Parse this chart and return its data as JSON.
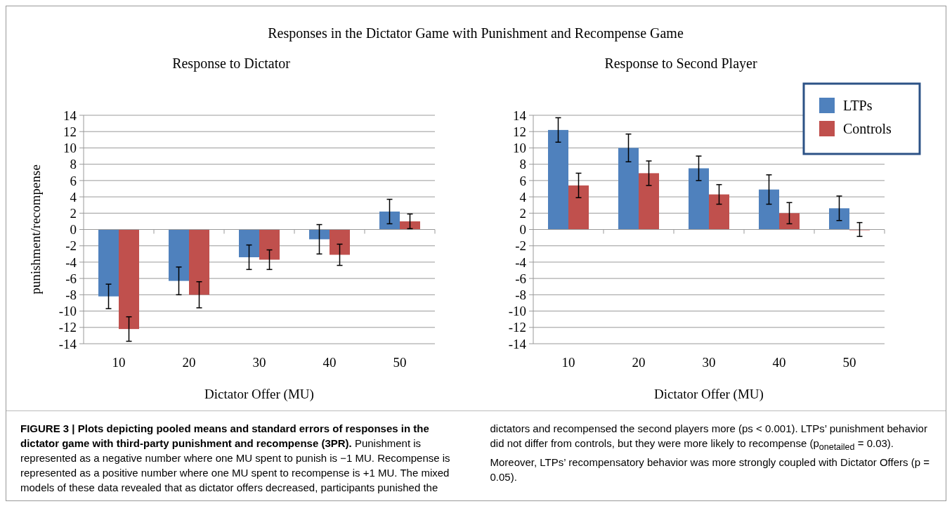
{
  "chart_data": [
    {
      "type": "bar",
      "title": "Response to Dictator",
      "xlabel": "Dictator Offer (MU)",
      "ylabel": "punishment/recompense",
      "categories": [
        "10",
        "20",
        "30",
        "40",
        "50"
      ],
      "ylim": [
        -14,
        14
      ],
      "yticks": [
        -14,
        -12,
        -10,
        -8,
        -6,
        -4,
        -2,
        0,
        2,
        4,
        6,
        8,
        10,
        12,
        14
      ],
      "grid": "y",
      "legend": false,
      "annotations": [
        "Responses in the Dictator Game with Punishment and Recompense Game"
      ],
      "series": [
        {
          "color": "#4f81bd",
          "values": [
            -8.2,
            -6.3,
            -3.4,
            -1.2,
            2.2
          ],
          "errors": [
            1.5,
            1.7,
            1.5,
            1.8,
            1.5
          ]
        },
        {
          "color": "#c0504d",
          "values": [
            -12.2,
            -8.0,
            -3.7,
            -3.1,
            1.0
          ],
          "errors": [
            1.5,
            1.6,
            1.2,
            1.3,
            0.9
          ]
        }
      ]
    },
    {
      "type": "bar",
      "title": "Response to Second Player",
      "xlabel": "Dictator Offer (MU)",
      "categories": [
        "10",
        "20",
        "30",
        "40",
        "50"
      ],
      "ylim": [
        -14,
        14
      ],
      "yticks": [
        -14,
        -12,
        -10,
        -8,
        -6,
        -4,
        -2,
        0,
        2,
        4,
        6,
        8,
        10,
        12,
        14
      ],
      "grid": "y",
      "legend": "top right",
      "annotations": [
        "FIGURE 3 | Plots depicting pooled means and standard errors of responses in the dictator game with third-party punishment and recompense (3PR).",
        "Punishment is represented as a negative number where one MU spent to punish is −1 MU. Recompense is represented as a positive number where one MU spent to recompense is +1 MU. The mixed models of these data revealed that as dictator offers decreased, participants punished the dictators and recompensed the second players more (ps < 0.001). LTPs’ punishment behavior did not differ from controls, but they were more likely to recompense (p$_{onetailed}$ = 0.03). Moreover, LTPs’ recompensatory behavior was more strongly coupled with Dictator Offers (p = 0.05)."
      ],
      "series": [
        {
          "name": "LTPs",
          "color": "#4f81bd",
          "values": [
            12.2,
            10.0,
            7.5,
            4.9,
            2.6
          ],
          "errors": [
            1.5,
            1.7,
            1.5,
            1.8,
            1.5
          ]
        },
        {
          "name": "Controls",
          "color": "#c0504d",
          "values": [
            5.4,
            6.9,
            4.3,
            2.0,
            0
          ],
          "errors": [
            1.5,
            1.5,
            1.2,
            1.3,
            0.85
          ]
        }
      ]
    }
  ]
}
